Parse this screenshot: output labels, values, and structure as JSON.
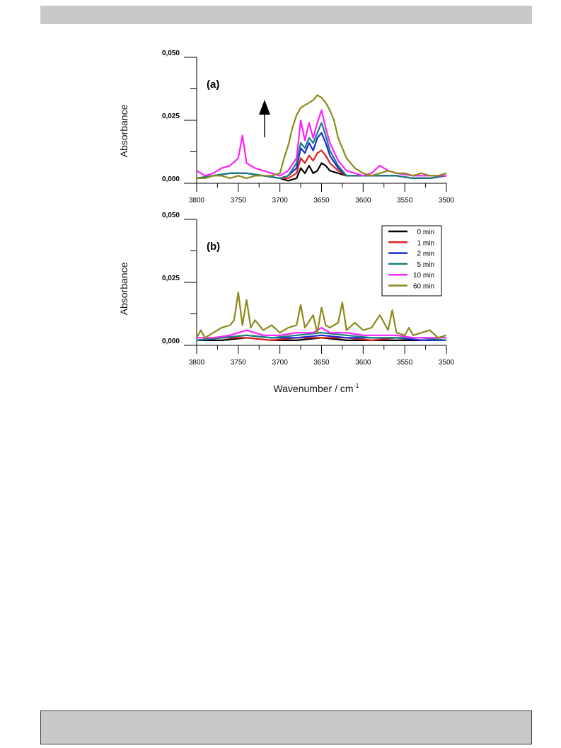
{
  "chart_data": [
    {
      "type": "line",
      "panel_label": "(a)",
      "xlabel": "",
      "ylabel": "Absorbance",
      "xlim": [
        3800,
        3500
      ],
      "ylim": [
        0,
        0.05
      ],
      "x_ticks": [
        "3800",
        "3750",
        "3700",
        "3650",
        "3600",
        "3550",
        "3500"
      ],
      "y_ticks": [
        "0,000",
        "0,025",
        "0,050"
      ],
      "annotation": "arrow-up",
      "series": [
        {
          "name": "0 min",
          "color": "#000000",
          "x": [
            3800,
            3780,
            3760,
            3740,
            3720,
            3700,
            3690,
            3680,
            3675,
            3670,
            3665,
            3660,
            3655,
            3650,
            3645,
            3640,
            3630,
            3620,
            3600,
            3580,
            3560,
            3540,
            3520,
            3500
          ],
          "y": [
            0.002,
            0.003,
            0.004,
            0.004,
            0.003,
            0.002,
            0.001,
            0.002,
            0.006,
            0.004,
            0.007,
            0.004,
            0.005,
            0.008,
            0.007,
            0.005,
            0.004,
            0.003,
            0.003,
            0.003,
            0.003,
            0.002,
            0.002,
            0.003
          ]
        },
        {
          "name": "1 min",
          "color": "#e02020",
          "x": [
            3800,
            3780,
            3760,
            3740,
            3720,
            3700,
            3690,
            3680,
            3675,
            3670,
            3665,
            3660,
            3655,
            3650,
            3645,
            3640,
            3630,
            3620,
            3600,
            3580,
            3560,
            3540,
            3520,
            3500
          ],
          "y": [
            0.002,
            0.003,
            0.004,
            0.004,
            0.003,
            0.002,
            0.002,
            0.004,
            0.01,
            0.008,
            0.011,
            0.009,
            0.012,
            0.013,
            0.011,
            0.008,
            0.005,
            0.003,
            0.003,
            0.003,
            0.003,
            0.002,
            0.002,
            0.003
          ]
        },
        {
          "name": "2 min",
          "color": "#1a2bd0",
          "x": [
            3800,
            3780,
            3760,
            3740,
            3720,
            3700,
            3690,
            3680,
            3675,
            3670,
            3665,
            3660,
            3655,
            3650,
            3645,
            3640,
            3630,
            3620,
            3600,
            3580,
            3560,
            3540,
            3520,
            3500
          ],
          "y": [
            0.002,
            0.003,
            0.004,
            0.004,
            0.003,
            0.002,
            0.003,
            0.006,
            0.014,
            0.012,
            0.016,
            0.013,
            0.018,
            0.02,
            0.016,
            0.011,
            0.006,
            0.003,
            0.003,
            0.003,
            0.003,
            0.002,
            0.002,
            0.003
          ]
        },
        {
          "name": "5 min",
          "color": "#178080",
          "x": [
            3800,
            3780,
            3760,
            3740,
            3720,
            3700,
            3690,
            3680,
            3675,
            3670,
            3665,
            3660,
            3655,
            3650,
            3645,
            3640,
            3630,
            3620,
            3600,
            3580,
            3560,
            3540,
            3520,
            3500
          ],
          "y": [
            0.002,
            0.003,
            0.004,
            0.004,
            0.003,
            0.002,
            0.003,
            0.008,
            0.016,
            0.014,
            0.018,
            0.016,
            0.02,
            0.024,
            0.019,
            0.013,
            0.007,
            0.003,
            0.003,
            0.003,
            0.003,
            0.002,
            0.002,
            0.003
          ]
        },
        {
          "name": "10 min",
          "color": "#ff20ff",
          "x": [
            3800,
            3790,
            3780,
            3770,
            3760,
            3750,
            3745,
            3740,
            3730,
            3720,
            3710,
            3700,
            3690,
            3680,
            3675,
            3670,
            3665,
            3660,
            3655,
            3650,
            3645,
            3640,
            3630,
            3620,
            3600,
            3590,
            3580,
            3570,
            3560,
            3540,
            3520,
            3500
          ],
          "y": [
            0.005,
            0.003,
            0.004,
            0.006,
            0.007,
            0.01,
            0.019,
            0.008,
            0.006,
            0.005,
            0.004,
            0.003,
            0.005,
            0.01,
            0.025,
            0.017,
            0.024,
            0.018,
            0.024,
            0.029,
            0.022,
            0.016,
            0.009,
            0.005,
            0.003,
            0.004,
            0.007,
            0.005,
            0.004,
            0.003,
            0.003,
            0.003
          ]
        },
        {
          "name": "60 min",
          "color": "#8c8a1a",
          "x": [
            3800,
            3790,
            3780,
            3770,
            3760,
            3750,
            3740,
            3730,
            3720,
            3710,
            3700,
            3695,
            3690,
            3685,
            3680,
            3675,
            3670,
            3665,
            3660,
            3655,
            3650,
            3645,
            3640,
            3635,
            3630,
            3620,
            3610,
            3600,
            3590,
            3580,
            3570,
            3560,
            3550,
            3540,
            3530,
            3520,
            3510,
            3500
          ],
          "y": [
            0.002,
            0.002,
            0.003,
            0.003,
            0.002,
            0.003,
            0.002,
            0.003,
            0.003,
            0.003,
            0.004,
            0.01,
            0.015,
            0.022,
            0.027,
            0.03,
            0.031,
            0.032,
            0.033,
            0.035,
            0.034,
            0.032,
            0.029,
            0.025,
            0.018,
            0.01,
            0.006,
            0.004,
            0.003,
            0.004,
            0.005,
            0.004,
            0.004,
            0.003,
            0.004,
            0.003,
            0.003,
            0.004
          ]
        }
      ]
    },
    {
      "type": "line",
      "panel_label": "(b)",
      "xlabel": "Wavenumber / cm",
      "xlabel_sup": "-1",
      "ylabel": "Absorbance",
      "xlim": [
        3800,
        3500
      ],
      "ylim": [
        0,
        0.05
      ],
      "x_ticks": [
        "3800",
        "3750",
        "3700",
        "3650",
        "3600",
        "3550",
        "3500"
      ],
      "y_ticks": [
        "0,000",
        "0,025",
        "0,050"
      ],
      "legend_position": "top-right",
      "series": [
        {
          "name": "0 min",
          "color": "#000000",
          "x": [
            3800,
            3770,
            3740,
            3710,
            3680,
            3650,
            3620,
            3590,
            3560,
            3530,
            3500
          ],
          "y": [
            0.002,
            0.002,
            0.003,
            0.002,
            0.002,
            0.003,
            0.002,
            0.002,
            0.002,
            0.002,
            0.002
          ]
        },
        {
          "name": "1 min",
          "color": "#e02020",
          "x": [
            3800,
            3770,
            3740,
            3710,
            3680,
            3650,
            3620,
            3590,
            3560,
            3530,
            3500
          ],
          "y": [
            0.002,
            0.003,
            0.003,
            0.002,
            0.003,
            0.003,
            0.003,
            0.002,
            0.003,
            0.002,
            0.002
          ]
        },
        {
          "name": "2 min",
          "color": "#1a2bd0",
          "x": [
            3800,
            3770,
            3740,
            3710,
            3680,
            3650,
            3620,
            3590,
            3560,
            3530,
            3500
          ],
          "y": [
            0.002,
            0.003,
            0.004,
            0.003,
            0.003,
            0.004,
            0.003,
            0.003,
            0.003,
            0.002,
            0.002
          ]
        },
        {
          "name": "5 min",
          "color": "#178080",
          "x": [
            3800,
            3770,
            3740,
            3710,
            3680,
            3650,
            3620,
            3590,
            3560,
            3530,
            3500
          ],
          "y": [
            0.002,
            0.003,
            0.004,
            0.003,
            0.004,
            0.005,
            0.004,
            0.003,
            0.003,
            0.003,
            0.002
          ]
        },
        {
          "name": "10 min",
          "color": "#ff20ff",
          "x": [
            3800,
            3780,
            3760,
            3740,
            3720,
            3700,
            3680,
            3660,
            3650,
            3640,
            3620,
            3600,
            3580,
            3560,
            3540,
            3520,
            3500
          ],
          "y": [
            0.003,
            0.003,
            0.004,
            0.006,
            0.004,
            0.004,
            0.005,
            0.005,
            0.007,
            0.005,
            0.005,
            0.004,
            0.004,
            0.004,
            0.003,
            0.003,
            0.003
          ]
        },
        {
          "name": "60 min",
          "color": "#8c8a1a",
          "x": [
            3800,
            3795,
            3790,
            3780,
            3770,
            3760,
            3755,
            3750,
            3745,
            3740,
            3735,
            3730,
            3720,
            3710,
            3700,
            3690,
            3680,
            3675,
            3670,
            3660,
            3655,
            3650,
            3645,
            3640,
            3630,
            3625,
            3620,
            3610,
            3600,
            3590,
            3580,
            3570,
            3565,
            3560,
            3550,
            3545,
            3540,
            3530,
            3520,
            3510,
            3500
          ],
          "y": [
            0.003,
            0.006,
            0.003,
            0.005,
            0.007,
            0.008,
            0.01,
            0.021,
            0.008,
            0.018,
            0.007,
            0.01,
            0.006,
            0.008,
            0.005,
            0.007,
            0.008,
            0.016,
            0.007,
            0.012,
            0.005,
            0.015,
            0.008,
            0.007,
            0.009,
            0.017,
            0.006,
            0.009,
            0.006,
            0.007,
            0.012,
            0.006,
            0.014,
            0.005,
            0.004,
            0.007,
            0.004,
            0.005,
            0.006,
            0.003,
            0.004
          ]
        }
      ]
    }
  ]
}
